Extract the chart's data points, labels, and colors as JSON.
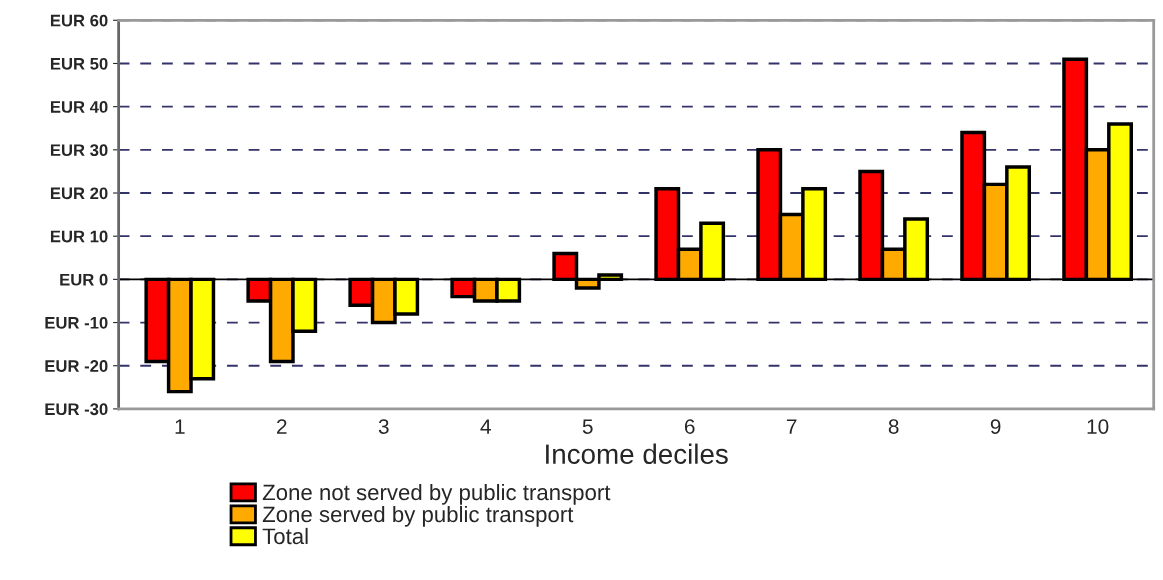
{
  "chart_data": {
    "type": "bar",
    "xlabel": "Income deciles",
    "categories": [
      "1",
      "2",
      "3",
      "4",
      "5",
      "6",
      "7",
      "8",
      "9",
      "10"
    ],
    "series": [
      {
        "name": "Zone not served by public transport",
        "color": "#ff0000",
        "values": [
          -19,
          -5,
          -6,
          -4,
          6,
          21,
          30,
          25,
          34,
          51
        ]
      },
      {
        "name": "Zone served by public transport",
        "color": "#ffaa00",
        "values": [
          -26,
          -19,
          -10,
          -5,
          -2,
          7,
          15,
          7,
          22,
          30
        ]
      },
      {
        "name": "Total",
        "color": "#ffff00",
        "values": [
          -23,
          -12,
          -8,
          -5,
          1,
          13,
          21,
          14,
          26,
          36
        ]
      }
    ],
    "ylim": [
      -30,
      60
    ],
    "yticks": [
      {
        "value": -30,
        "label": "EUR -30"
      },
      {
        "value": -20,
        "label": "EUR -20"
      },
      {
        "value": -10,
        "label": "EUR -10"
      },
      {
        "value": 0,
        "label": "EUR 0"
      },
      {
        "value": 10,
        "label": "EUR 10"
      },
      {
        "value": 20,
        "label": "EUR 20"
      },
      {
        "value": 30,
        "label": "EUR 30"
      },
      {
        "value": 40,
        "label": "EUR 40"
      },
      {
        "value": 50,
        "label": "EUR 50"
      },
      {
        "value": 60,
        "label": "EUR 60"
      }
    ],
    "grid": "y",
    "legend": "bottom"
  }
}
